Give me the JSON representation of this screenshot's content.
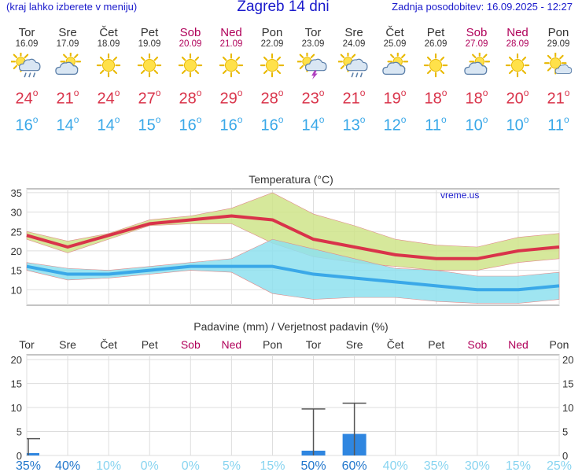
{
  "header": {
    "menu_hint": "(kraj lahko izberete v meniju)",
    "title": "Zagreb 14 dni",
    "updated": "Zadnja posodobitev: 16.09.2025 - 12:27"
  },
  "colors": {
    "max_temp": "#d9334a",
    "min_temp": "#3aa8e8",
    "weekend": "#b0005a",
    "max_band": "#cfe48a",
    "min_band": "#8ee0ee",
    "precip_bar": "#2f86e0",
    "prob_strong": "#2277cc",
    "prob_weak": "#88d4f0"
  },
  "days": [
    {
      "name": "Tor",
      "date": "16.09",
      "weekend": false,
      "icon": "sun-cloud-rain-icon",
      "max": "24",
      "min": "16"
    },
    {
      "name": "Sre",
      "date": "17.09",
      "weekend": false,
      "icon": "sun-cloud-icon",
      "max": "21",
      "min": "14"
    },
    {
      "name": "Čet",
      "date": "18.09",
      "weekend": false,
      "icon": "sun-icon",
      "max": "24",
      "min": "14"
    },
    {
      "name": "Pet",
      "date": "19.09",
      "weekend": false,
      "icon": "sun-icon",
      "max": "27",
      "min": "15"
    },
    {
      "name": "Sob",
      "date": "20.09",
      "weekend": true,
      "icon": "sun-icon",
      "max": "28",
      "min": "16"
    },
    {
      "name": "Ned",
      "date": "21.09",
      "weekend": true,
      "icon": "sun-icon",
      "max": "29",
      "min": "16"
    },
    {
      "name": "Pon",
      "date": "22.09",
      "weekend": false,
      "icon": "sun-icon",
      "max": "28",
      "min": "16"
    },
    {
      "name": "Tor",
      "date": "23.09",
      "weekend": false,
      "icon": "sun-cloud-storm-icon",
      "max": "23",
      "min": "14"
    },
    {
      "name": "Sre",
      "date": "24.09",
      "weekend": false,
      "icon": "sun-cloud-rain-icon",
      "max": "21",
      "min": "13"
    },
    {
      "name": "Čet",
      "date": "25.09",
      "weekend": false,
      "icon": "sun-cloud-icon",
      "max": "19",
      "min": "12"
    },
    {
      "name": "Pet",
      "date": "26.09",
      "weekend": false,
      "icon": "sun-icon",
      "max": "18",
      "min": "11"
    },
    {
      "name": "Sob",
      "date": "27.09",
      "weekend": true,
      "icon": "sun-cloud-icon",
      "max": "18",
      "min": "10"
    },
    {
      "name": "Ned",
      "date": "28.09",
      "weekend": true,
      "icon": "sun-icon",
      "max": "20",
      "min": "10"
    },
    {
      "name": "Pon",
      "date": "29.09",
      "weekend": false,
      "icon": "sun-cloud-small-icon",
      "max": "21",
      "min": "11"
    }
  ],
  "chart_data": [
    {
      "type": "line",
      "title": "Temperatura (°C)",
      "watermark": "vreme.us",
      "ylim": [
        6,
        36
      ],
      "yticks": [
        10,
        15,
        20,
        25,
        30,
        35
      ],
      "grid": true,
      "categories": [
        "Tor",
        "Sre",
        "Čet",
        "Pet",
        "Sob",
        "Ned",
        "Pon",
        "Tor",
        "Sre",
        "Čet",
        "Pet",
        "Sob",
        "Ned",
        "Pon"
      ],
      "series": [
        {
          "name": "max",
          "values": [
            24,
            21,
            24,
            27,
            28,
            29,
            28,
            23,
            21,
            19,
            18,
            18,
            20,
            21
          ],
          "band_high": [
            25,
            22.5,
            24.5,
            28,
            29,
            31,
            35,
            29.5,
            26.5,
            23,
            21.5,
            21,
            23.5,
            24.5
          ],
          "band_low": [
            23,
            19.5,
            23,
            26.5,
            27,
            27,
            22,
            18.5,
            17,
            16,
            15,
            15,
            17,
            18
          ]
        },
        {
          "name": "min",
          "values": [
            16,
            14,
            14,
            15,
            16,
            16,
            16,
            14,
            13,
            12,
            11,
            10,
            10,
            11
          ],
          "band_high": [
            17,
            15.5,
            15,
            16,
            17,
            18,
            23,
            20.5,
            18,
            15.5,
            15,
            13.5,
            13.5,
            14.5
          ],
          "band_low": [
            15,
            12.5,
            13,
            14,
            15,
            14.5,
            9,
            7.5,
            8,
            8,
            7,
            6.5,
            6.5,
            7.5
          ]
        }
      ]
    },
    {
      "type": "bar",
      "title": "Padavine (mm) / Verjetnost padavin (%)",
      "ylim": [
        0,
        21
      ],
      "yticks": [
        0,
        5,
        10,
        15,
        20
      ],
      "grid": true,
      "categories": [
        "Tor",
        "Sre",
        "Čet",
        "Pet",
        "Sob",
        "Ned",
        "Pon",
        "Tor",
        "Sre",
        "Čet",
        "Pet",
        "Sob",
        "Ned",
        "Pon"
      ],
      "precip_mm": [
        0.5,
        0,
        0,
        0,
        0,
        0,
        0,
        1,
        4.5,
        0,
        0,
        0,
        0,
        0
      ],
      "precip_max_mm": [
        3.5,
        0,
        0,
        0,
        0,
        0,
        0,
        9.7,
        10.9,
        0,
        0,
        0,
        0,
        0
      ],
      "probability": [
        "35%",
        "40%",
        "10%",
        "0%",
        "0%",
        "5%",
        "15%",
        "50%",
        "60%",
        "40%",
        "35%",
        "30%",
        "15%",
        "25%"
      ],
      "probability_strong": [
        true,
        true,
        false,
        false,
        false,
        false,
        false,
        true,
        true,
        false,
        false,
        false,
        false,
        false
      ]
    }
  ]
}
